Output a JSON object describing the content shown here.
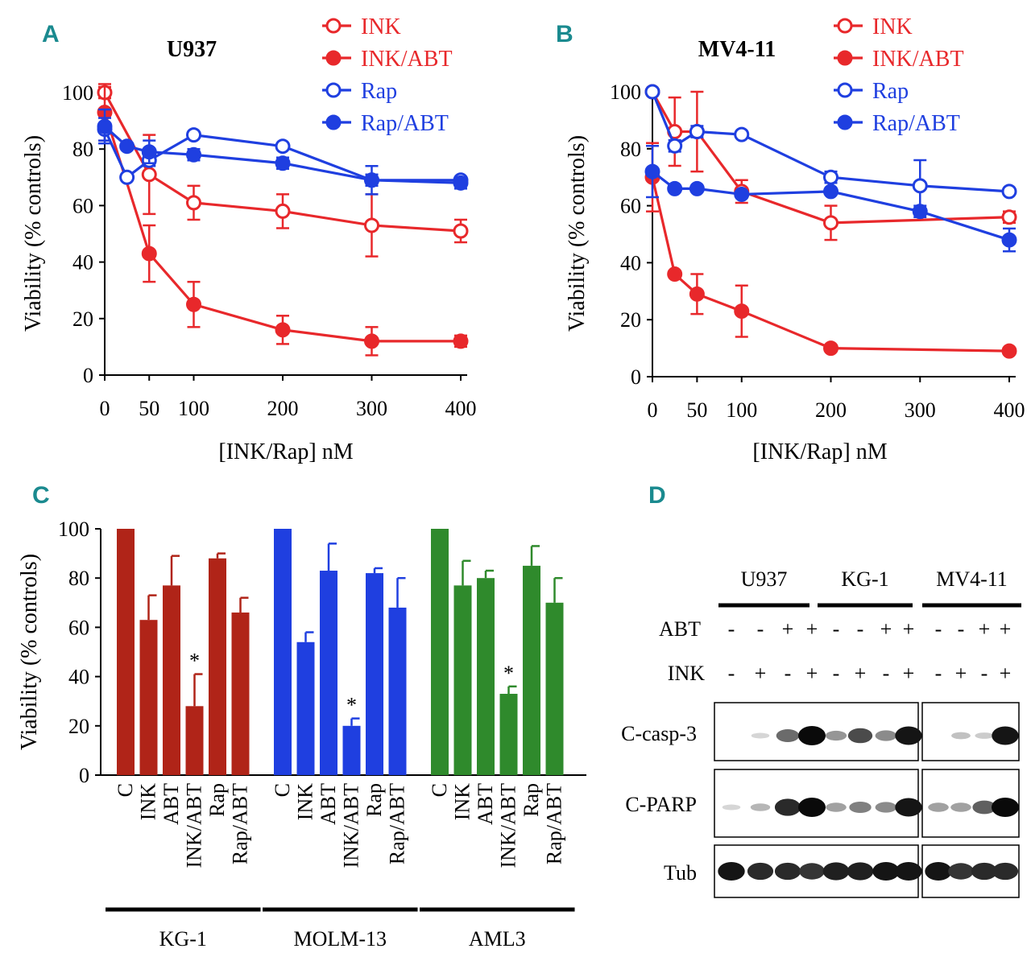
{
  "chart_data": [
    {
      "panel": "A",
      "type": "line",
      "title": "U937",
      "xlabel": "[INK/Rap]  nM",
      "ylabel": "Viability (% controls)",
      "xlim": [
        0,
        400
      ],
      "ylim": [
        0,
        100
      ],
      "xticks": [
        0,
        50,
        100,
        200,
        300,
        400
      ],
      "yticks": [
        0,
        20,
        40,
        60,
        80,
        100
      ],
      "series": [
        {
          "name": "INK",
          "color": "#e8282b",
          "marker": "open-circle",
          "x": [
            0,
            50,
            100,
            200,
            300,
            400
          ],
          "y": [
            100,
            71,
            61,
            58,
            53,
            51
          ],
          "err": [
            2,
            14,
            6,
            6,
            11,
            4
          ]
        },
        {
          "name": "INK/ABT",
          "color": "#e8282b",
          "marker": "filled-circle",
          "x": [
            0,
            50,
            100,
            200,
            300,
            400
          ],
          "y": [
            93,
            43,
            25,
            16,
            12,
            12
          ],
          "err": [
            10,
            10,
            8,
            5,
            5,
            2
          ]
        },
        {
          "name": "Rap",
          "color": "#1f3fe0",
          "marker": "open-circle",
          "x": [
            0,
            25,
            50,
            100,
            200,
            300,
            400
          ],
          "y": [
            87,
            70,
            76,
            85,
            81,
            69,
            69
          ],
          "err": [
            4,
            1,
            2,
            1,
            1,
            2,
            1
          ]
        },
        {
          "name": "Rap/ABT",
          "color": "#1f3fe0",
          "marker": "filled-circle",
          "x": [
            0,
            25,
            50,
            100,
            200,
            300,
            400
          ],
          "y": [
            88,
            81,
            79,
            78,
            75,
            69,
            68
          ],
          "err": [
            6,
            1,
            4,
            2,
            2,
            5,
            2
          ]
        }
      ]
    },
    {
      "panel": "B",
      "type": "line",
      "title": "MV4-11",
      "xlabel": "[INK/Rap]  nM",
      "ylabel": "Viability (% controls)",
      "xlim": [
        0,
        400
      ],
      "ylim": [
        0,
        100
      ],
      "xticks": [
        0,
        50,
        100,
        200,
        300,
        400
      ],
      "yticks": [
        0,
        20,
        40,
        60,
        80,
        100
      ],
      "series": [
        {
          "name": "INK",
          "color": "#e8282b",
          "marker": "open-circle",
          "x": [
            0,
            25,
            50,
            100,
            200,
            400
          ],
          "y": [
            100,
            86,
            86,
            65,
            54,
            56
          ],
          "err": [
            1,
            12,
            14,
            4,
            6,
            2
          ]
        },
        {
          "name": "INK/ABT",
          "color": "#e8282b",
          "marker": "filled-circle",
          "x": [
            0,
            25,
            50,
            100,
            200,
            400
          ],
          "y": [
            70,
            36,
            29,
            23,
            10,
            9
          ],
          "err": [
            12,
            1,
            7,
            9,
            1,
            1
          ]
        },
        {
          "name": "Rap",
          "color": "#1f3fe0",
          "marker": "open-circle",
          "x": [
            0,
            25,
            50,
            100,
            200,
            300,
            400
          ],
          "y": [
            100,
            81,
            86,
            85,
            70,
            67,
            65
          ],
          "err": [
            1,
            2,
            2,
            1,
            2,
            9,
            1
          ]
        },
        {
          "name": "Rap/ABT",
          "color": "#1f3fe0",
          "marker": "filled-circle",
          "x": [
            0,
            25,
            50,
            100,
            200,
            300,
            400
          ],
          "y": [
            72,
            66,
            66,
            64,
            65,
            58,
            48
          ],
          "err": [
            9,
            1,
            1,
            1,
            1,
            2,
            4
          ]
        }
      ]
    },
    {
      "panel": "C",
      "type": "bar",
      "ylabel": "Viability (% controls)",
      "ylim": [
        0,
        100
      ],
      "yticks": [
        0,
        20,
        40,
        60,
        80,
        100
      ],
      "categories": [
        "C",
        "INK",
        "ABT",
        "INK/ABT",
        "Rap",
        "Rap/ABT"
      ],
      "groups": [
        {
          "name": "KG-1",
          "color": "#b02418",
          "values": [
            100,
            63,
            77,
            28,
            88,
            66
          ],
          "err": [
            0,
            10,
            12,
            13,
            2,
            6
          ],
          "star": [
            false,
            false,
            false,
            true,
            false,
            false
          ]
        },
        {
          "name": "MOLM-13",
          "color": "#1f3fe0",
          "values": [
            100,
            54,
            83,
            20,
            82,
            68
          ],
          "err": [
            0,
            4,
            11,
            3,
            2,
            12
          ],
          "star": [
            false,
            false,
            false,
            true,
            false,
            false
          ]
        },
        {
          "name": "AML3",
          "color": "#2f8a2c",
          "values": [
            100,
            77,
            80,
            33,
            85,
            70
          ],
          "err": [
            0,
            10,
            3,
            3,
            8,
            10
          ],
          "star": [
            false,
            false,
            false,
            true,
            false,
            false
          ]
        }
      ],
      "annotation": "*"
    }
  ],
  "figure": {
    "panel_labels": [
      "A",
      "B",
      "C",
      "D"
    ],
    "blot": {
      "cell_lines": [
        "U937",
        "KG-1",
        "MV4-11"
      ],
      "row_labels": {
        "abt": "ABT",
        "ink": "INK"
      },
      "abt_signs": [
        "-",
        "-",
        "+",
        "+",
        "-",
        "-",
        "+",
        "+",
        "-",
        "-",
        "+",
        "+"
      ],
      "ink_signs": [
        "-",
        "+",
        "-",
        "+",
        "-",
        "+",
        "-",
        "+",
        "-",
        "+",
        "-",
        "+"
      ],
      "bands": [
        {
          "label": "C-casp-3",
          "intensity": [
            0.0,
            0.05,
            0.55,
            1.0,
            0.35,
            0.7,
            0.4,
            0.95,
            0.0,
            0.15,
            0.1,
            0.95
          ]
        },
        {
          "label": "C-PARP",
          "intensity": [
            0.05,
            0.2,
            0.85,
            1.0,
            0.3,
            0.45,
            0.4,
            0.95,
            0.3,
            0.3,
            0.6,
            1.0
          ]
        },
        {
          "label": "Tub",
          "intensity": [
            0.95,
            0.85,
            0.85,
            0.8,
            0.9,
            0.9,
            0.95,
            0.95,
            0.95,
            0.8,
            0.85,
            0.85
          ]
        }
      ]
    }
  }
}
